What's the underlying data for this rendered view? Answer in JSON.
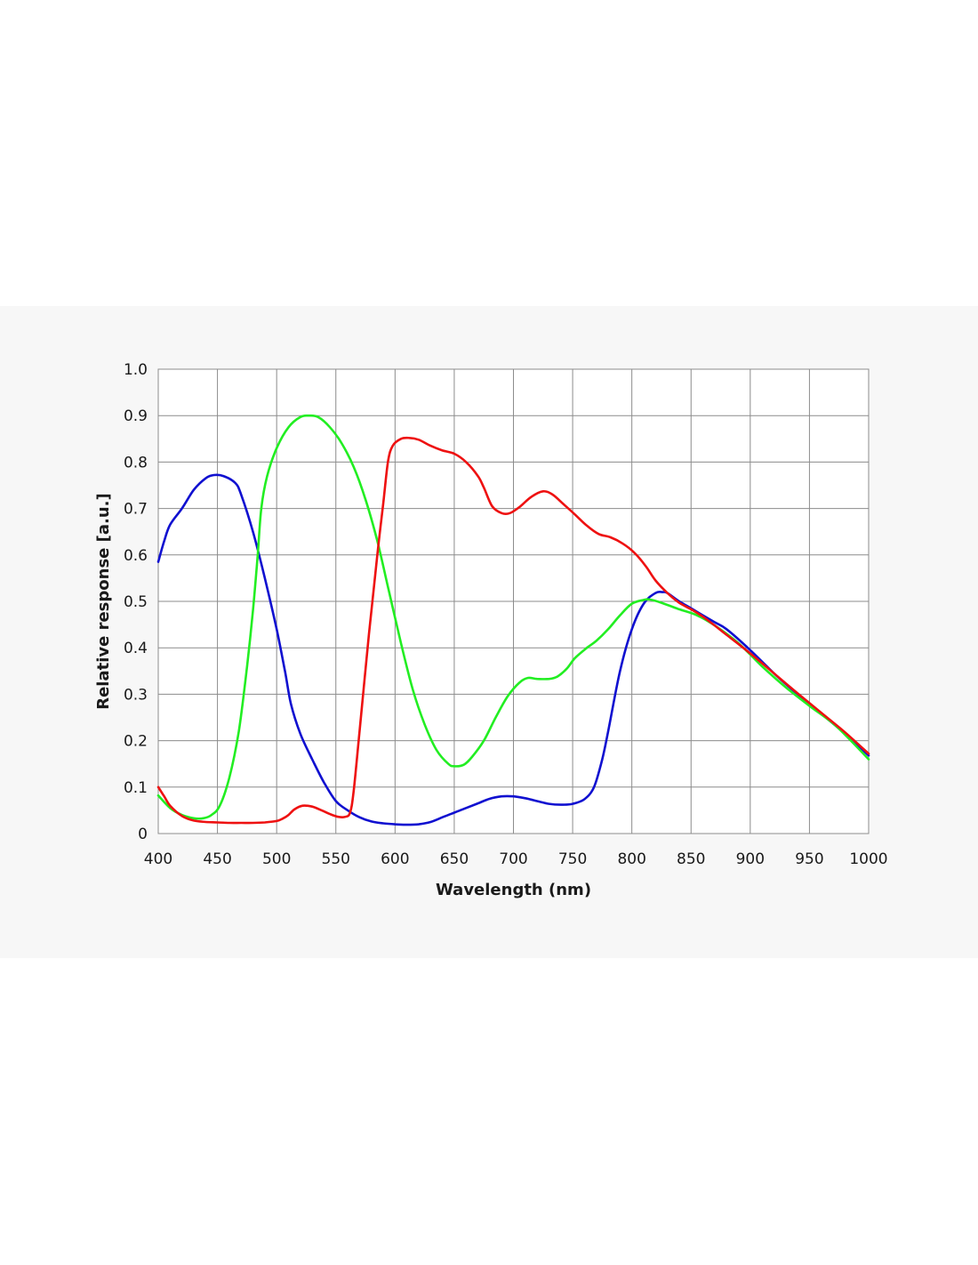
{
  "chart_data": {
    "type": "line",
    "title": "",
    "xlabel": "Wavelength (nm)",
    "ylabel": "Relative response [a.u.]",
    "xlim": [
      400,
      1000
    ],
    "ylim": [
      0,
      1.0
    ],
    "x_ticks": [
      400,
      450,
      500,
      550,
      600,
      650,
      700,
      750,
      800,
      850,
      900,
      950,
      1000
    ],
    "x_tick_labels": [
      "400",
      "450",
      "500",
      "550",
      "600",
      "650",
      "700",
      "750",
      "800",
      "850",
      "900",
      "950",
      "1000"
    ],
    "y_ticks": [
      0,
      0.1,
      0.2,
      0.3,
      0.4,
      0.5,
      0.6,
      0.7,
      0.8,
      0.9,
      1.0
    ],
    "y_tick_labels": [
      "0",
      "0.1",
      "0.2",
      "0.3",
      "0.4",
      "0.5",
      "0.6",
      "0.7",
      "0.8",
      "0.9",
      "1.0"
    ],
    "grid": true,
    "legend": "none",
    "series": [
      {
        "color": "#1010d0",
        "points": [
          [
            400,
            0.585
          ],
          [
            405,
            0.63
          ],
          [
            410,
            0.665
          ],
          [
            420,
            0.7
          ],
          [
            430,
            0.74
          ],
          [
            440,
            0.765
          ],
          [
            447,
            0.772
          ],
          [
            455,
            0.77
          ],
          [
            465,
            0.755
          ],
          [
            470,
            0.73
          ],
          [
            480,
            0.65
          ],
          [
            490,
            0.55
          ],
          [
            500,
            0.44
          ],
          [
            507,
            0.35
          ],
          [
            512,
            0.28
          ],
          [
            520,
            0.215
          ],
          [
            530,
            0.16
          ],
          [
            540,
            0.11
          ],
          [
            550,
            0.07
          ],
          [
            560,
            0.05
          ],
          [
            570,
            0.035
          ],
          [
            580,
            0.026
          ],
          [
            590,
            0.022
          ],
          [
            600,
            0.02
          ],
          [
            610,
            0.019
          ],
          [
            620,
            0.02
          ],
          [
            630,
            0.025
          ],
          [
            640,
            0.035
          ],
          [
            650,
            0.045
          ],
          [
            660,
            0.055
          ],
          [
            670,
            0.065
          ],
          [
            680,
            0.075
          ],
          [
            690,
            0.08
          ],
          [
            700,
            0.08
          ],
          [
            710,
            0.076
          ],
          [
            720,
            0.07
          ],
          [
            730,
            0.064
          ],
          [
            740,
            0.062
          ],
          [
            750,
            0.064
          ],
          [
            760,
            0.074
          ],
          [
            768,
            0.1
          ],
          [
            775,
            0.16
          ],
          [
            780,
            0.22
          ],
          [
            790,
            0.35
          ],
          [
            800,
            0.44
          ],
          [
            810,
            0.495
          ],
          [
            820,
            0.518
          ],
          [
            826,
            0.52
          ],
          [
            830,
            0.518
          ],
          [
            840,
            0.5
          ],
          [
            850,
            0.485
          ],
          [
            860,
            0.47
          ],
          [
            870,
            0.455
          ],
          [
            880,
            0.44
          ],
          [
            900,
            0.395
          ],
          [
            920,
            0.345
          ],
          [
            940,
            0.3
          ],
          [
            960,
            0.258
          ],
          [
            980,
            0.215
          ],
          [
            1000,
            0.168
          ]
        ]
      },
      {
        "color": "#22ee22",
        "points": [
          [
            400,
            0.082
          ],
          [
            410,
            0.055
          ],
          [
            420,
            0.04
          ],
          [
            430,
            0.033
          ],
          [
            438,
            0.033
          ],
          [
            445,
            0.04
          ],
          [
            452,
            0.06
          ],
          [
            460,
            0.12
          ],
          [
            468,
            0.22
          ],
          [
            475,
            0.36
          ],
          [
            480,
            0.48
          ],
          [
            484,
            0.6
          ],
          [
            487,
            0.7
          ],
          [
            492,
            0.77
          ],
          [
            500,
            0.83
          ],
          [
            510,
            0.875
          ],
          [
            520,
            0.897
          ],
          [
            527,
            0.9
          ],
          [
            535,
            0.897
          ],
          [
            545,
            0.875
          ],
          [
            555,
            0.84
          ],
          [
            565,
            0.79
          ],
          [
            575,
            0.72
          ],
          [
            585,
            0.63
          ],
          [
            595,
            0.52
          ],
          [
            605,
            0.41
          ],
          [
            615,
            0.31
          ],
          [
            625,
            0.235
          ],
          [
            635,
            0.18
          ],
          [
            645,
            0.15
          ],
          [
            650,
            0.145
          ],
          [
            658,
            0.148
          ],
          [
            665,
            0.165
          ],
          [
            675,
            0.2
          ],
          [
            685,
            0.25
          ],
          [
            695,
            0.295
          ],
          [
            705,
            0.325
          ],
          [
            712,
            0.335
          ],
          [
            720,
            0.333
          ],
          [
            730,
            0.333
          ],
          [
            737,
            0.338
          ],
          [
            745,
            0.355
          ],
          [
            752,
            0.378
          ],
          [
            762,
            0.4
          ],
          [
            770,
            0.415
          ],
          [
            780,
            0.44
          ],
          [
            790,
            0.47
          ],
          [
            800,
            0.495
          ],
          [
            810,
            0.503
          ],
          [
            815,
            0.504
          ],
          [
            825,
            0.497
          ],
          [
            840,
            0.483
          ],
          [
            855,
            0.47
          ],
          [
            870,
            0.448
          ],
          [
            890,
            0.41
          ],
          [
            910,
            0.36
          ],
          [
            930,
            0.315
          ],
          [
            950,
            0.275
          ],
          [
            970,
            0.237
          ],
          [
            985,
            0.2
          ],
          [
            1000,
            0.16
          ]
        ]
      },
      {
        "color": "#ee1111",
        "points": [
          [
            400,
            0.1
          ],
          [
            405,
            0.08
          ],
          [
            410,
            0.06
          ],
          [
            420,
            0.038
          ],
          [
            430,
            0.028
          ],
          [
            440,
            0.025
          ],
          [
            450,
            0.024
          ],
          [
            460,
            0.023
          ],
          [
            470,
            0.023
          ],
          [
            480,
            0.023
          ],
          [
            490,
            0.024
          ],
          [
            500,
            0.027
          ],
          [
            505,
            0.032
          ],
          [
            510,
            0.04
          ],
          [
            515,
            0.052
          ],
          [
            522,
            0.06
          ],
          [
            530,
            0.058
          ],
          [
            538,
            0.05
          ],
          [
            545,
            0.042
          ],
          [
            552,
            0.036
          ],
          [
            558,
            0.036
          ],
          [
            562,
            0.045
          ],
          [
            565,
            0.09
          ],
          [
            570,
            0.22
          ],
          [
            578,
            0.43
          ],
          [
            585,
            0.6
          ],
          [
            590,
            0.71
          ],
          [
            594,
            0.8
          ],
          [
            598,
            0.835
          ],
          [
            605,
            0.85
          ],
          [
            612,
            0.852
          ],
          [
            620,
            0.848
          ],
          [
            630,
            0.835
          ],
          [
            640,
            0.825
          ],
          [
            650,
            0.818
          ],
          [
            660,
            0.8
          ],
          [
            670,
            0.77
          ],
          [
            675,
            0.745
          ],
          [
            682,
            0.705
          ],
          [
            690,
            0.69
          ],
          [
            697,
            0.69
          ],
          [
            705,
            0.703
          ],
          [
            715,
            0.725
          ],
          [
            725,
            0.737
          ],
          [
            733,
            0.73
          ],
          [
            742,
            0.71
          ],
          [
            752,
            0.687
          ],
          [
            762,
            0.663
          ],
          [
            772,
            0.645
          ],
          [
            782,
            0.638
          ],
          [
            792,
            0.625
          ],
          [
            802,
            0.605
          ],
          [
            812,
            0.575
          ],
          [
            820,
            0.545
          ],
          [
            830,
            0.518
          ],
          [
            840,
            0.497
          ],
          [
            850,
            0.483
          ],
          [
            860,
            0.467
          ],
          [
            870,
            0.448
          ],
          [
            880,
            0.428
          ],
          [
            900,
            0.388
          ],
          [
            920,
            0.345
          ],
          [
            940,
            0.302
          ],
          [
            960,
            0.26
          ],
          [
            980,
            0.218
          ],
          [
            1000,
            0.172
          ]
        ]
      }
    ]
  }
}
